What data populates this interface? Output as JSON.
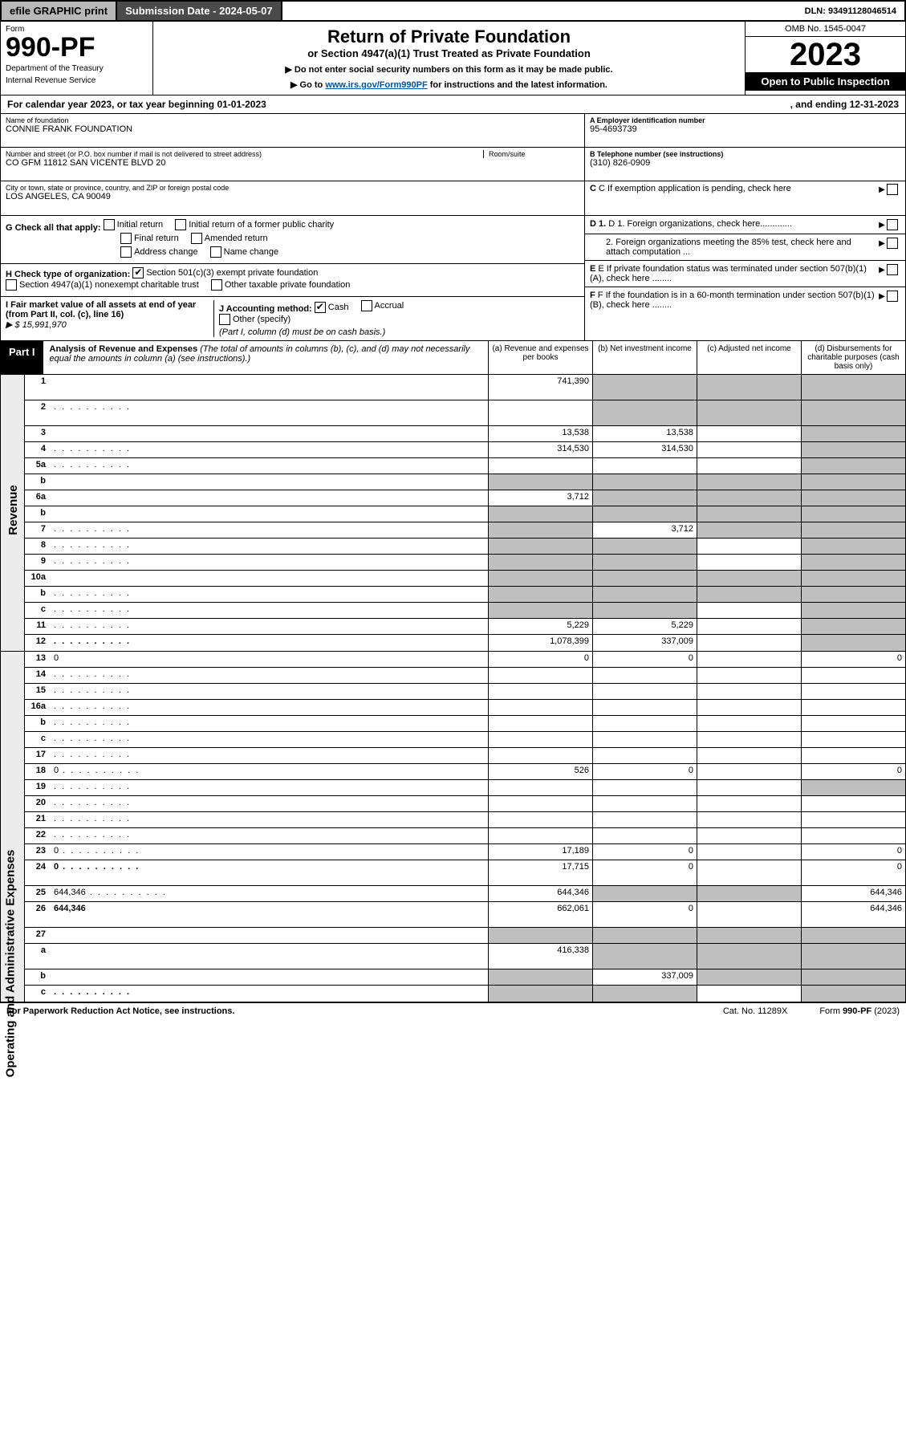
{
  "topbar": {
    "efile": "efile GRAPHIC print",
    "submission": "Submission Date - 2024-05-07",
    "dln": "DLN: 93491128046514"
  },
  "header": {
    "form_word": "Form",
    "form_num": "990-PF",
    "dept": "Department of the Treasury",
    "irs": "Internal Revenue Service",
    "title": "Return of Private Foundation",
    "sub1": "or Section 4947(a)(1) Trust Treated as Private Foundation",
    "sub2a": "▶ Do not enter social security numbers on this form as it may be made public.",
    "sub2b_pre": "▶ Go to ",
    "sub2b_link": "www.irs.gov/Form990PF",
    "sub2b_post": " for instructions and the latest information.",
    "omb": "OMB No. 1545-0047",
    "year": "2023",
    "open": "Open to Public Inspection"
  },
  "calrow": {
    "left": "For calendar year 2023, or tax year beginning 01-01-2023",
    "right": ", and ending 12-31-2023"
  },
  "entity": {
    "name_lbl": "Name of foundation",
    "name_val": "CONNIE FRANK FOUNDATION",
    "addr_lbl": "Number and street (or P.O. box number if mail is not delivered to street address)",
    "addr_val": "CO GFM 11812 SAN VICENTE BLVD 20",
    "room_lbl": "Room/suite",
    "city_lbl": "City or town, state or province, country, and ZIP or foreign postal code",
    "city_val": "LOS ANGELES, CA  90049",
    "ein_lbl": "A Employer identification number",
    "ein_val": "95-4693739",
    "tel_lbl": "B Telephone number (see instructions)",
    "tel_val": "(310) 826-0909",
    "c": "C If exemption application is pending, check here",
    "d1": "D 1. Foreign organizations, check here.............",
    "d2": "2. Foreign organizations meeting the 85% test, check here and attach computation ...",
    "e": "E If private foundation status was terminated under section 507(b)(1)(A), check here ........",
    "f": "F If the foundation is in a 60-month termination under section 507(b)(1)(B), check here ........"
  },
  "g": {
    "label": "G Check all that apply:",
    "initial": "Initial return",
    "initial_former": "Initial return of a former public charity",
    "final": "Final return",
    "amended": "Amended return",
    "address": "Address change",
    "namechg": "Name change"
  },
  "h": {
    "label": "H Check type of organization:",
    "s501": "Section 501(c)(3) exempt private foundation",
    "s4947": "Section 4947(a)(1) nonexempt charitable trust",
    "other": "Other taxable private foundation"
  },
  "i": {
    "label": "I Fair market value of all assets at end of year (from Part II, col. (c), line 16)",
    "val": "▶ $  15,991,970"
  },
  "j": {
    "label": "J Accounting method:",
    "cash": "Cash",
    "accrual": "Accrual",
    "other": "Other (specify)",
    "note": "(Part I, column (d) must be on cash basis.)"
  },
  "part1": {
    "label": "Part I",
    "title": "Analysis of Revenue and Expenses",
    "note": "(The total of amounts in columns (b), (c), and (d) may not necessarily equal the amounts in column (a) (see instructions).)",
    "ca": "(a) Revenue and expenses per books",
    "cb": "(b) Net investment income",
    "cc": "(c) Adjusted net income",
    "cd": "(d) Disbursements for charitable purposes (cash basis only)"
  },
  "side": {
    "rev": "Revenue",
    "exp": "Operating and Administrative Expenses"
  },
  "rows": [
    {
      "n": "1",
      "d": "",
      "a": "741,390",
      "b": "",
      "c": "",
      "gb": true,
      "gc": true,
      "gd": true,
      "tall": true
    },
    {
      "n": "2",
      "d": "",
      "a": "",
      "b": "",
      "c": "",
      "gb": true,
      "gc": true,
      "gd": true,
      "tall": true,
      "dots": true
    },
    {
      "n": "3",
      "d": "",
      "a": "13,538",
      "b": "13,538",
      "c": "",
      "gd": true
    },
    {
      "n": "4",
      "d": "",
      "a": "314,530",
      "b": "314,530",
      "c": "",
      "gd": true,
      "dots": true
    },
    {
      "n": "5a",
      "d": "",
      "a": "",
      "b": "",
      "c": "",
      "gd": true,
      "dots": true
    },
    {
      "n": "b",
      "d": "",
      "a": "",
      "b": "",
      "c": "",
      "ga": true,
      "gb": true,
      "gc": true,
      "gd": true
    },
    {
      "n": "6a",
      "d": "",
      "a": "3,712",
      "b": "",
      "c": "",
      "gb": true,
      "gc": true,
      "gd": true
    },
    {
      "n": "b",
      "d": "",
      "a": "",
      "b": "",
      "c": "",
      "ga": true,
      "gb": true,
      "gc": true,
      "gd": true
    },
    {
      "n": "7",
      "d": "",
      "a": "",
      "b": "3,712",
      "c": "",
      "ga": true,
      "gc": true,
      "gd": true,
      "dots": true
    },
    {
      "n": "8",
      "d": "",
      "a": "",
      "b": "",
      "c": "",
      "ga": true,
      "gb": true,
      "gd": true,
      "dots": true
    },
    {
      "n": "9",
      "d": "",
      "a": "",
      "b": "",
      "c": "",
      "ga": true,
      "gb": true,
      "gd": true,
      "dots": true
    },
    {
      "n": "10a",
      "d": "",
      "a": "",
      "b": "",
      "c": "",
      "ga": true,
      "gb": true,
      "gc": true,
      "gd": true
    },
    {
      "n": "b",
      "d": "",
      "a": "",
      "b": "",
      "c": "",
      "ga": true,
      "gb": true,
      "gc": true,
      "gd": true,
      "dots": true
    },
    {
      "n": "c",
      "d": "",
      "a": "",
      "b": "",
      "c": "",
      "ga": true,
      "gb": true,
      "gd": true,
      "dots": true
    },
    {
      "n": "11",
      "d": "",
      "a": "5,229",
      "b": "5,229",
      "c": "",
      "gd": true,
      "dots": true
    },
    {
      "n": "12",
      "d": "",
      "a": "1,078,399",
      "b": "337,009",
      "c": "",
      "gd": true,
      "bold": true,
      "dots": true
    },
    {
      "n": "13",
      "d": "0",
      "a": "0",
      "b": "0",
      "c": ""
    },
    {
      "n": "14",
      "d": "",
      "a": "",
      "b": "",
      "c": "",
      "dots": true
    },
    {
      "n": "15",
      "d": "",
      "a": "",
      "b": "",
      "c": "",
      "dots": true
    },
    {
      "n": "16a",
      "d": "",
      "a": "",
      "b": "",
      "c": "",
      "dots": true
    },
    {
      "n": "b",
      "d": "",
      "a": "",
      "b": "",
      "c": "",
      "dots": true
    },
    {
      "n": "c",
      "d": "",
      "a": "",
      "b": "",
      "c": "",
      "dots": true
    },
    {
      "n": "17",
      "d": "",
      "a": "",
      "b": "",
      "c": "",
      "dots": true
    },
    {
      "n": "18",
      "d": "0",
      "a": "526",
      "b": "0",
      "c": "",
      "dots": true
    },
    {
      "n": "19",
      "d": "",
      "a": "",
      "b": "",
      "c": "",
      "gd": true,
      "dots": true
    },
    {
      "n": "20",
      "d": "",
      "a": "",
      "b": "",
      "c": "",
      "dots": true
    },
    {
      "n": "21",
      "d": "",
      "a": "",
      "b": "",
      "c": "",
      "dots": true
    },
    {
      "n": "22",
      "d": "",
      "a": "",
      "b": "",
      "c": "",
      "dots": true
    },
    {
      "n": "23",
      "d": "0",
      "a": "17,189",
      "b": "0",
      "c": "",
      "dots": true
    },
    {
      "n": "24",
      "d": "0",
      "a": "17,715",
      "b": "0",
      "c": "",
      "bold": true,
      "tall": true,
      "dots": true
    },
    {
      "n": "25",
      "d": "644,346",
      "a": "644,346",
      "b": "",
      "c": "",
      "gb": true,
      "gc": true,
      "dots": true
    },
    {
      "n": "26",
      "d": "644,346",
      "a": "662,061",
      "b": "0",
      "c": "",
      "bold": true,
      "tall": true
    },
    {
      "n": "27",
      "d": "",
      "a": "",
      "b": "",
      "c": "",
      "ga": true,
      "gb": true,
      "gc": true,
      "gd": true
    },
    {
      "n": "a",
      "d": "",
      "a": "416,338",
      "b": "",
      "c": "",
      "gb": true,
      "gc": true,
      "gd": true,
      "bold": true,
      "tall": true
    },
    {
      "n": "b",
      "d": "",
      "a": "",
      "b": "337,009",
      "c": "",
      "ga": true,
      "gc": true,
      "gd": true,
      "bold": true
    },
    {
      "n": "c",
      "d": "",
      "a": "",
      "b": "",
      "c": "",
      "ga": true,
      "gb": true,
      "gd": true,
      "bold": true,
      "dots": true
    }
  ],
  "footer": {
    "left": "For Paperwork Reduction Act Notice, see instructions.",
    "mid": "Cat. No. 11289X",
    "right": "Form 990-PF (2023)"
  }
}
